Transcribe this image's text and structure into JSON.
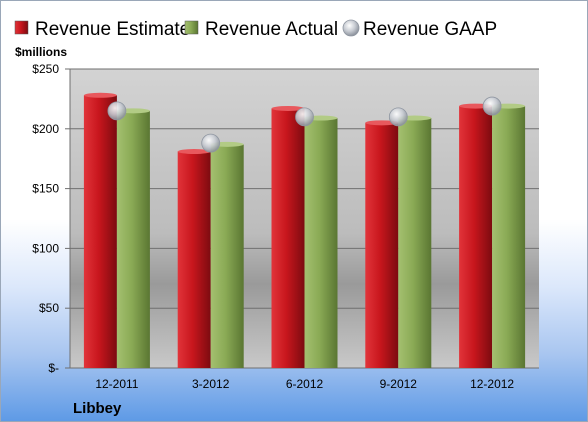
{
  "chart_data": {
    "type": "bar",
    "company": "Libbey",
    "units": "$millions",
    "categories": [
      "12-2011",
      "3-2012",
      "6-2012",
      "9-2012",
      "12-2012"
    ],
    "series": [
      {
        "name": "Revenue Estimate",
        "kind": "bar",
        "color": "#c8161d",
        "values": [
          228,
          181,
          217,
          205,
          219
        ]
      },
      {
        "name": "Revenue Actual",
        "kind": "bar",
        "color": "#8aaa55",
        "values": [
          215,
          187,
          209,
          209,
          219
        ]
      },
      {
        "name": "Revenue GAAP",
        "kind": "marker",
        "color": "#b8bec8",
        "values": [
          215,
          188,
          210,
          210,
          219
        ]
      }
    ],
    "ylim": [
      0,
      250
    ],
    "yticks": [
      0,
      50,
      100,
      150,
      200,
      250
    ],
    "ytick_labels": [
      "$-",
      "$50",
      "$100",
      "$150",
      "$200",
      "$250"
    ],
    "grid": true,
    "legend_position": "top"
  }
}
